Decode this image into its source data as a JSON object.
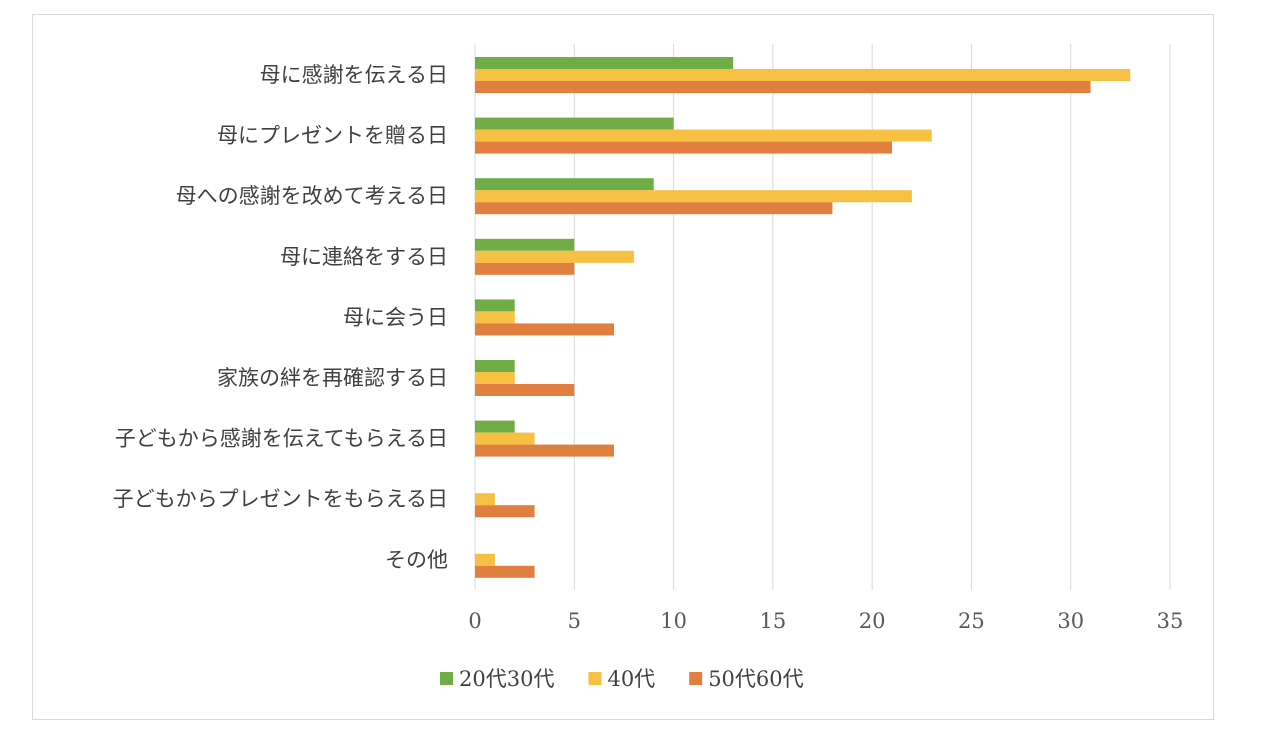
{
  "chart_data": {
    "type": "bar",
    "orientation": "horizontal",
    "title": "",
    "xlabel": "",
    "ylabel": "",
    "categories": [
      "母に感謝を伝える日",
      "母にプレゼントを贈る日",
      "母への感謝を改めて考える日",
      "母に連絡をする日",
      "母に会う日",
      "家族の絆を再確認する日",
      "子どもから感謝を伝えてもらえる日",
      "子どもからプレゼントをもらえる日",
      "その他"
    ],
    "series": [
      {
        "name": "20代30代",
        "color": "#70ad47",
        "values": [
          13,
          10,
          9,
          5,
          2,
          2,
          2,
          0,
          0
        ]
      },
      {
        "name": "40代",
        "color": "#f6c142",
        "values": [
          33,
          23,
          22,
          8,
          2,
          2,
          3,
          1,
          1
        ]
      },
      {
        "name": "50代60代",
        "color": "#e07f3f",
        "values": [
          31,
          21,
          18,
          5,
          7,
          5,
          7,
          3,
          3
        ]
      }
    ],
    "xlim": [
      0,
      35
    ],
    "xticks": [
      0,
      5,
      10,
      15,
      20,
      25,
      30,
      35
    ],
    "xtick_labels": [
      "0",
      "5",
      "10",
      "15",
      "20",
      "25",
      "30",
      "35"
    ],
    "grid": "vertical",
    "legend": "bottom"
  }
}
